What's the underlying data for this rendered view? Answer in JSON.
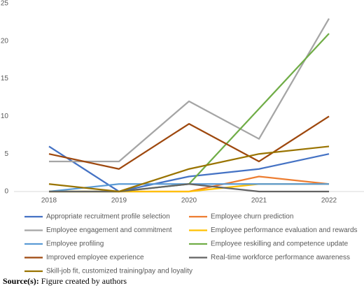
{
  "chart_data": {
    "type": "line",
    "categories": [
      "2018",
      "2019",
      "2020",
      "2021",
      "2022"
    ],
    "series": [
      {
        "name": "Appropriate recruitment profile selection",
        "color": "#4472c4",
        "values": [
          6,
          0,
          2,
          3,
          5
        ]
      },
      {
        "name": "Employee churn prediction",
        "color": "#ed7d31",
        "values": [
          0,
          0,
          0,
          2,
          1
        ]
      },
      {
        "name": "Employee engagement and commitment",
        "color": "#a5a5a5",
        "values": [
          4,
          4,
          12,
          7,
          23
        ]
      },
      {
        "name": "Employee performance evaluation and rewards",
        "color": "#ffc000",
        "values": [
          0,
          0,
          0,
          1,
          1
        ]
      },
      {
        "name": "Employee profiling",
        "color": "#5b9bd5",
        "values": [
          0,
          1,
          1,
          1,
          1
        ]
      },
      {
        "name": "Employee reskilling and competence update",
        "color": "#70ad47",
        "values": [
          0,
          0,
          1,
          11,
          21
        ]
      },
      {
        "name": "Improved employee experience",
        "color": "#9e480e",
        "values": [
          5,
          3,
          9,
          4,
          10
        ]
      },
      {
        "name": "Real-time workforce performance awareness",
        "color": "#636363",
        "values": [
          0,
          0,
          1,
          0,
          0
        ]
      },
      {
        "name": "Skill-job fit, customized training/pay and loyality",
        "color": "#997300",
        "values": [
          1,
          0,
          3,
          5,
          6
        ]
      }
    ],
    "ylim": [
      0,
      25
    ],
    "yticks": [
      0,
      5,
      10,
      15,
      20,
      25
    ],
    "grid": false,
    "source_label": "Source(s):",
    "source_text": "Figure created by authors"
  }
}
